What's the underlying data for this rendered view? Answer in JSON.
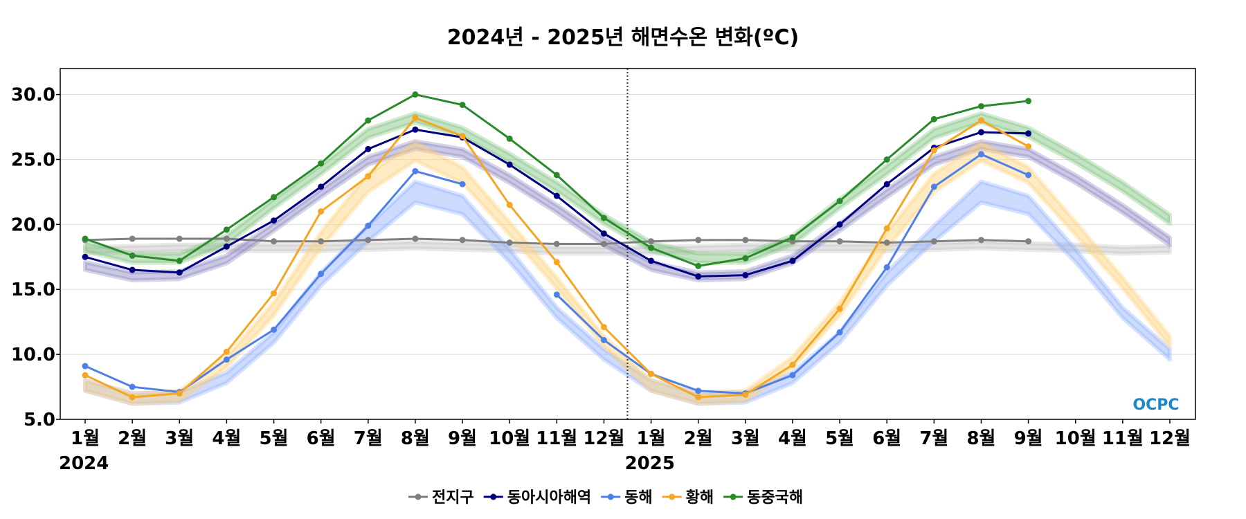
{
  "chart_data": {
    "type": "line",
    "title": "2024년 - 2025년 해면수온 변화(ºC)",
    "ylim": [
      5.0,
      32.0
    ],
    "yticks": [
      "5.0",
      "10.0",
      "15.0",
      "20.0",
      "25.0",
      "30.0"
    ],
    "categories": [
      "1월",
      "2월",
      "3월",
      "4월",
      "5월",
      "6월",
      "7월",
      "8월",
      "9월",
      "10월",
      "11월",
      "12월",
      "1월",
      "2월",
      "3월",
      "4월",
      "5월",
      "6월",
      "7월",
      "8월",
      "9월",
      "10월",
      "11월",
      "12월"
    ],
    "year_labels": [
      {
        "label": "2024",
        "index": 0
      },
      {
        "label": "2025",
        "index": 12
      }
    ],
    "year_divider_index": 11.5,
    "grid": true,
    "legend_position": "bottom",
    "logo_text": "OCPC",
    "series": [
      {
        "name": "전지구",
        "color": "#808080",
        "values": [
          18.8,
          18.9,
          18.9,
          18.9,
          18.7,
          18.7,
          18.8,
          18.9,
          18.8,
          18.6,
          18.5,
          18.5,
          18.7,
          18.8,
          18.8,
          18.7,
          18.7,
          18.6,
          18.7,
          18.8,
          18.7,
          null,
          null,
          null
        ]
      },
      {
        "name": "동아시아해역",
        "color": "#000080",
        "values": [
          17.5,
          16.5,
          16.3,
          18.3,
          20.3,
          22.9,
          25.8,
          27.3,
          26.7,
          24.6,
          22.2,
          19.3,
          17.2,
          16.0,
          16.1,
          17.2,
          20.0,
          23.1,
          25.9,
          27.1,
          27.0,
          null,
          null,
          null
        ]
      },
      {
        "name": "동해",
        "color": "#4f7fe8",
        "values": [
          9.1,
          7.5,
          7.1,
          9.6,
          11.9,
          16.2,
          19.9,
          24.1,
          23.1,
          null,
          14.6,
          11.1,
          8.5,
          7.2,
          7.0,
          8.4,
          11.7,
          16.7,
          22.9,
          25.4,
          23.8,
          null,
          null,
          null
        ]
      },
      {
        "name": "황해",
        "color": "#f5a623",
        "values": [
          8.4,
          6.7,
          7.0,
          10.2,
          14.7,
          21.0,
          23.7,
          28.2,
          26.8,
          21.5,
          17.1,
          12.1,
          8.5,
          6.7,
          6.9,
          9.2,
          13.5,
          19.7,
          25.7,
          28.0,
          26.0,
          null,
          null,
          null
        ]
      },
      {
        "name": "동중국해",
        "color": "#2a8a2a",
        "values": [
          18.9,
          17.6,
          17.2,
          19.6,
          22.1,
          24.7,
          28.0,
          30.0,
          29.2,
          26.6,
          23.8,
          20.5,
          18.2,
          16.8,
          17.4,
          19.0,
          21.8,
          25.0,
          28.1,
          29.1,
          29.5,
          null,
          null,
          null
        ]
      }
    ],
    "climatology_bands": [
      {
        "color": "#c0c0c0",
        "values": [
          18.0,
          18.1,
          18.2,
          18.2,
          18.2,
          18.2,
          18.3,
          18.4,
          18.3,
          18.2,
          18.0,
          18.0,
          18.0,
          18.1,
          18.2,
          18.2,
          18.2,
          18.2,
          18.3,
          18.4,
          18.3,
          18.2,
          18.0,
          18.1
        ],
        "spread": [
          0.25,
          0.25,
          0.25,
          0.25,
          0.25,
          0.25,
          0.25,
          0.25,
          0.25,
          0.25,
          0.25,
          0.25,
          0.25,
          0.25,
          0.25,
          0.25,
          0.25,
          0.25,
          0.25,
          0.25,
          0.25,
          0.25,
          0.25,
          0.25
        ]
      },
      {
        "color": "#8a84c0",
        "values": [
          16.8,
          16.0,
          16.1,
          17.3,
          19.8,
          22.4,
          24.9,
          26.1,
          25.5,
          23.5,
          21.2,
          18.7,
          16.8,
          16.0,
          16.1,
          17.3,
          19.8,
          22.4,
          24.9,
          26.1,
          25.5,
          23.5,
          21.2,
          18.7
        ],
        "spread": [
          0.3,
          0.3,
          0.3,
          0.3,
          0.3,
          0.3,
          0.3,
          0.3,
          0.3,
          0.3,
          0.3,
          0.3,
          0.3,
          0.3,
          0.3,
          0.3,
          0.3,
          0.3,
          0.3,
          0.3,
          0.3,
          0.3,
          0.3,
          0.3
        ]
      },
      {
        "color": "#8fb0ff",
        "values": [
          7.6,
          6.6,
          6.7,
          8.2,
          11.3,
          15.8,
          19.3,
          22.5,
          21.5,
          17.6,
          13.2,
          10.0,
          7.6,
          6.6,
          6.7,
          8.2,
          11.3,
          15.8,
          19.3,
          22.5,
          21.5,
          17.6,
          13.2,
          10.0
        ],
        "spread": [
          0.4,
          0.4,
          0.4,
          0.4,
          0.4,
          0.5,
          0.6,
          0.8,
          0.7,
          0.5,
          0.4,
          0.4,
          0.4,
          0.4,
          0.4,
          0.4,
          0.4,
          0.5,
          0.6,
          0.8,
          0.7,
          0.5,
          0.4,
          0.4
        ]
      },
      {
        "color": "#ffd27a",
        "values": [
          7.6,
          6.6,
          6.8,
          9.4,
          13.5,
          18.8,
          23.2,
          25.6,
          23.8,
          19.7,
          15.5,
          11.0,
          7.6,
          6.6,
          6.8,
          9.4,
          13.5,
          18.8,
          23.2,
          25.6,
          23.8,
          19.7,
          15.5,
          11.0
        ],
        "spread": [
          0.4,
          0.4,
          0.4,
          0.4,
          0.5,
          0.6,
          0.7,
          0.7,
          0.6,
          0.5,
          0.4,
          0.4,
          0.4,
          0.4,
          0.4,
          0.4,
          0.5,
          0.6,
          0.7,
          0.7,
          0.6,
          0.5,
          0.4,
          0.4
        ]
      },
      {
        "color": "#7cc27c",
        "values": [
          18.3,
          17.4,
          17.4,
          18.8,
          21.6,
          24.2,
          27.0,
          28.2,
          27.1,
          25.1,
          22.9,
          20.4,
          18.3,
          17.4,
          17.4,
          18.8,
          21.6,
          24.2,
          27.0,
          28.2,
          27.1,
          25.1,
          22.9,
          20.4
        ],
        "spread": [
          0.35,
          0.35,
          0.35,
          0.35,
          0.35,
          0.35,
          0.35,
          0.35,
          0.35,
          0.35,
          0.35,
          0.35,
          0.35,
          0.35,
          0.35,
          0.35,
          0.35,
          0.35,
          0.35,
          0.35,
          0.35,
          0.35,
          0.35,
          0.35
        ]
      }
    ]
  }
}
